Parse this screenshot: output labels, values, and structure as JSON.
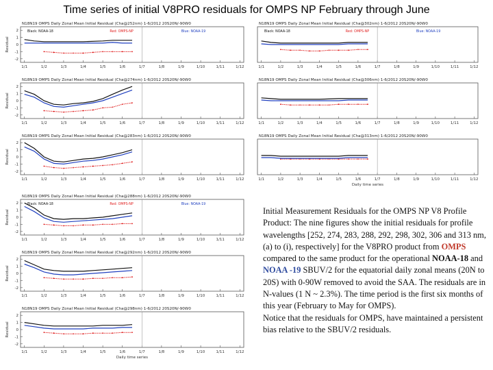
{
  "title": "Time series of initial V8PRO residuals for OMPS NP February through June",
  "colors": {
    "noaa18": "#111111",
    "omps": "#e02020",
    "noaa19": "#1f3fbf",
    "frame": "#555555"
  },
  "caption": {
    "p1_a": "Initial Measurement Residuals for the OMPS NP V8 Profile Product: The nine figures show the initial residuals for profile wavelengths [252, 274, 283, 288, 292, 298, 302, 306 and 313 nm, (a) to (i), respectively] for the V8PRO product from ",
    "omps": "OMPS",
    "p1_b": " compared to the same product for the operational ",
    "noaa18": "NOAA-18",
    "p1_c": " and ",
    "noaa19": "NOAA -19",
    "p1_d": " SBUV/2 for the equatorial daily zonal means (20N to 20S) with 0-90W removed to avoid the SAA. The residuals are in N-values (1 N ~ 2.3%). The time period is the first six months of this year (February to May for OMPS).",
    "p2": "Notice that the residuals for OMPS, have maintained a persistent bias relative to the SBUV/2 residuals."
  },
  "chart_data": [
    {
      "type": "line",
      "title": "N18N19 OMPS Daily Zonal Mean Initial Residual (Cha@252nm) 1-6/2012 20S20N/-90W0",
      "ylabel": "Residual",
      "xlabel": "",
      "x_ticks": [
        "1/1",
        "1/2",
        "1/3",
        "1/4",
        "1/5",
        "1/6",
        "1/7",
        "1/8",
        "1/9",
        "1/10",
        "1/11",
        "1/12"
      ],
      "y_ticks": [
        "2",
        "1",
        "0",
        "-1",
        "-2"
      ],
      "ylim": [
        -2.5,
        2.5
      ],
      "legend": [
        "Black: NOAA-18",
        "Red: OMPS-NP",
        "Blue: NOAA-19"
      ],
      "series": [
        {
          "name": "NOAA-18",
          "x": [
            1,
            1.5,
            2,
            3,
            4,
            5,
            5.5,
            6,
            6.5
          ],
          "values": [
            0.7,
            0.5,
            0.4,
            0.4,
            0.4,
            0.5,
            0.6,
            0.6,
            0.6
          ]
        },
        {
          "name": "OMPS-NP",
          "x": [
            2,
            2.5,
            3,
            3.5,
            4,
            4.5,
            5,
            5.5,
            6,
            6.5
          ],
          "values": [
            -1.0,
            -1.1,
            -1.2,
            -1.2,
            -1.2,
            -1.1,
            -1.0,
            -1.0,
            -1.0,
            -1.0
          ]
        },
        {
          "name": "NOAA-19",
          "x": [
            1,
            1.5,
            2,
            3,
            4,
            5,
            5.5,
            6,
            6.5
          ],
          "values": [
            0.2,
            0.2,
            0.2,
            0.2,
            0.2,
            0.2,
            0.3,
            0.2,
            0.2
          ]
        }
      ]
    },
    {
      "type": "line",
      "title": "N18N19 OMPS Daily Zonal Mean Initial Residual (Cha@274nm) 1-6/2012 20S20N/-90W0",
      "ylabel": "Residual",
      "xlabel": "",
      "x_ticks": [
        "1/1",
        "1/2",
        "1/3",
        "1/4",
        "1/5",
        "1/6",
        "1/7",
        "1/8",
        "1/9",
        "1/10",
        "1/11",
        "1/12"
      ],
      "y_ticks": [
        "2",
        "1",
        "0",
        "-1",
        "-2"
      ],
      "ylim": [
        -2.5,
        2.5
      ],
      "series": [
        {
          "name": "NOAA-18",
          "x": [
            1,
            1.5,
            2,
            2.5,
            3,
            3.5,
            4,
            4.5,
            5,
            5.5,
            6,
            6.5
          ],
          "values": [
            1.4,
            0.9,
            0.0,
            -0.5,
            -0.6,
            -0.4,
            -0.3,
            -0.1,
            0.3,
            0.9,
            1.5,
            2.0
          ]
        },
        {
          "name": "OMPS-NP",
          "x": [
            2,
            2.5,
            3,
            3.5,
            4,
            4.5,
            5,
            5.5,
            6,
            6.5
          ],
          "values": [
            -1.4,
            -1.5,
            -1.6,
            -1.5,
            -1.4,
            -1.3,
            -1.0,
            -0.9,
            -0.5,
            -0.3
          ]
        },
        {
          "name": "NOAA-19",
          "x": [
            1,
            1.5,
            2,
            2.5,
            3,
            3.5,
            4,
            4.5,
            5,
            5.5,
            6,
            6.5
          ],
          "values": [
            0.9,
            0.5,
            -0.3,
            -0.8,
            -0.9,
            -0.7,
            -0.5,
            -0.3,
            0.0,
            0.5,
            1.0,
            1.5
          ]
        }
      ]
    },
    {
      "type": "line",
      "title": "N18N19 OMPS Daily Zonal Mean Initial Residual (Cha@283nm) 1-6/2012 20S20N/-90W0",
      "ylabel": "Residual",
      "xlabel": "",
      "x_ticks": [
        "1/1",
        "1/2",
        "1/3",
        "1/4",
        "1/5",
        "1/6",
        "1/7",
        "1/8",
        "1/9",
        "1/10",
        "1/11",
        "1/12"
      ],
      "y_ticks": [
        "2",
        "1",
        "0",
        "-1",
        "-2"
      ],
      "ylim": [
        -2.5,
        2.5
      ],
      "series": [
        {
          "name": "NOAA-18",
          "x": [
            1,
            1.5,
            2,
            2.5,
            3,
            3.5,
            4,
            4.5,
            5,
            5.5,
            6,
            6.5
          ],
          "values": [
            2.0,
            1.2,
            0.0,
            -0.6,
            -0.7,
            -0.5,
            -0.3,
            -0.2,
            0.0,
            0.3,
            0.6,
            1.0
          ]
        },
        {
          "name": "OMPS-NP",
          "x": [
            2,
            2.5,
            3,
            3.5,
            4,
            4.5,
            5,
            5.5,
            6,
            6.5
          ],
          "values": [
            -1.3,
            -1.5,
            -1.6,
            -1.5,
            -1.4,
            -1.3,
            -1.2,
            -1.1,
            -0.9,
            -0.7
          ]
        },
        {
          "name": "NOAA-19",
          "x": [
            1,
            1.5,
            2,
            2.5,
            3,
            3.5,
            4,
            4.5,
            5,
            5.5,
            6,
            6.5
          ],
          "values": [
            1.4,
            0.8,
            -0.3,
            -0.9,
            -1.0,
            -0.8,
            -0.6,
            -0.5,
            -0.3,
            0.0,
            0.3,
            0.7
          ]
        }
      ]
    },
    {
      "type": "line",
      "title": "N18N19 OMPS Daily Zonal Mean Initial Residual (Cha@288nm) 1-6/2012 20S20N/-90W0",
      "ylabel": "Residual",
      "xlabel": "",
      "x_ticks": [
        "1/1",
        "1/2",
        "1/3",
        "1/4",
        "1/5",
        "1/6",
        "1/7",
        "1/8",
        "1/9",
        "1/10",
        "1/11",
        "1/12"
      ],
      "y_ticks": [
        "2",
        "1",
        "0",
        "-1",
        "-2"
      ],
      "ylim": [
        -2.5,
        2.5
      ],
      "legend": [
        "Black: NOAA-18",
        "Red: OMPS-NP",
        "Blue: NOAA-19"
      ],
      "series": [
        {
          "name": "NOAA-18",
          "x": [
            1,
            1.5,
            2,
            2.5,
            3,
            3.5,
            4,
            4.5,
            5,
            5.5,
            6,
            6.5
          ],
          "values": [
            2.0,
            1.3,
            0.3,
            -0.2,
            -0.3,
            -0.2,
            -0.2,
            -0.1,
            0.0,
            0.2,
            0.4,
            0.6
          ]
        },
        {
          "name": "OMPS-NP",
          "x": [
            2,
            2.5,
            3,
            3.5,
            4,
            4.5,
            5,
            5.5,
            6,
            6.5
          ],
          "values": [
            -1.0,
            -1.1,
            -1.2,
            -1.2,
            -1.1,
            -1.1,
            -1.0,
            -1.0,
            -0.9,
            -0.9
          ]
        },
        {
          "name": "NOAA-19",
          "x": [
            1,
            1.5,
            2,
            2.5,
            3,
            3.5,
            4,
            4.5,
            5,
            5.5,
            6,
            6.5
          ],
          "values": [
            1.5,
            0.8,
            -0.1,
            -0.6,
            -0.7,
            -0.6,
            -0.5,
            -0.4,
            -0.3,
            -0.2,
            0.0,
            0.2
          ]
        }
      ]
    },
    {
      "type": "line",
      "title": "N18N19 OMPS Daily Zonal Mean Initial Residual (Cha@292nm) 1-6/2012 20S20N/-90W0",
      "ylabel": "Residual",
      "xlabel": "",
      "x_ticks": [
        "1/1",
        "1/2",
        "1/3",
        "1/4",
        "1/5",
        "1/6",
        "1/7",
        "1/8",
        "1/9",
        "1/10",
        "1/11",
        "1/12"
      ],
      "y_ticks": [
        "2",
        "1",
        "0",
        "-1",
        "-2"
      ],
      "ylim": [
        -2.5,
        2.5
      ],
      "series": [
        {
          "name": "NOAA-18",
          "x": [
            1,
            1.5,
            2,
            2.5,
            3,
            3.5,
            4,
            4.5,
            5,
            5.5,
            6,
            6.5
          ],
          "values": [
            1.8,
            1.2,
            0.6,
            0.4,
            0.3,
            0.3,
            0.3,
            0.4,
            0.5,
            0.6,
            0.7,
            0.8
          ]
        },
        {
          "name": "OMPS-NP",
          "x": [
            2,
            2.5,
            3,
            3.5,
            4,
            4.5,
            5,
            5.5,
            6,
            6.5
          ],
          "values": [
            -0.6,
            -0.7,
            -0.8,
            -0.8,
            -0.8,
            -0.7,
            -0.7,
            -0.6,
            -0.6,
            -0.5
          ]
        },
        {
          "name": "NOAA-19",
          "x": [
            1,
            1.5,
            2,
            2.5,
            3,
            3.5,
            4,
            4.5,
            5,
            5.5,
            6,
            6.5
          ],
          "values": [
            1.3,
            0.8,
            0.2,
            -0.1,
            -0.2,
            -0.2,
            -0.1,
            0.0,
            0.1,
            0.2,
            0.3,
            0.4
          ]
        }
      ]
    },
    {
      "type": "line",
      "title": "N18N19 OMPS Daily Zonal Mean Initial Residual (Cha@298nm) 1-6/2012 20S20N/-90W0",
      "ylabel": "Residual",
      "xlabel": "Daily time series",
      "x_ticks": [
        "1/1",
        "1/2",
        "1/3",
        "1/4",
        "1/5",
        "1/6",
        "1/7",
        "1/8",
        "1/9",
        "1/10",
        "1/11",
        "1/12"
      ],
      "y_ticks": [
        "2",
        "1",
        "0",
        "-1",
        "-2"
      ],
      "ylim": [
        -2.5,
        2.5
      ],
      "series": [
        {
          "name": "NOAA-18",
          "x": [
            1,
            1.5,
            2,
            2.5,
            3,
            3.5,
            4,
            4.5,
            5,
            5.5,
            6,
            6.5
          ],
          "values": [
            1.0,
            0.8,
            0.6,
            0.5,
            0.5,
            0.5,
            0.5,
            0.5,
            0.6,
            0.6,
            0.6,
            0.7
          ]
        },
        {
          "name": "OMPS-NP",
          "x": [
            2,
            2.5,
            3,
            3.5,
            4,
            4.5,
            5,
            5.5,
            6,
            6.5
          ],
          "values": [
            -0.4,
            -0.5,
            -0.6,
            -0.6,
            -0.6,
            -0.5,
            -0.5,
            -0.5,
            -0.4,
            -0.4
          ]
        },
        {
          "name": "NOAA-19",
          "x": [
            1,
            1.5,
            2,
            2.5,
            3,
            3.5,
            4,
            4.5,
            5,
            5.5,
            6,
            6.5
          ],
          "values": [
            0.6,
            0.4,
            0.2,
            0.1,
            0.1,
            0.1,
            0.1,
            0.2,
            0.2,
            0.2,
            0.3,
            0.3
          ]
        }
      ]
    },
    {
      "type": "line",
      "title": "N18N19 OMPS Daily Zonal Mean Initial Residual (Cha@302nm) 1-6/2012 20S20N/-90W0",
      "ylabel": "",
      "xlabel": "",
      "x_ticks": [
        "1/1",
        "1/2",
        "1/3",
        "1/4",
        "1/5",
        "1/6",
        "1/7",
        "1/8",
        "1/9",
        "1/10",
        "1/11",
        "1/12"
      ],
      "y_ticks": [],
      "ylim": [
        -2.5,
        2.5
      ],
      "legend": [
        "Black: NOAA-18",
        "Red: OMPS-NP",
        "Blue: NOAA-19"
      ],
      "series": [
        {
          "name": "NOAA-18",
          "x": [
            1,
            1.5,
            2,
            3,
            4,
            5,
            5.5,
            6,
            6.5
          ],
          "values": [
            0.5,
            0.3,
            0.2,
            0.2,
            0.2,
            0.2,
            0.3,
            0.3,
            0.3
          ]
        },
        {
          "name": "OMPS-NP",
          "x": [
            2,
            2.5,
            3,
            3.5,
            4,
            4.5,
            5,
            5.5,
            6,
            6.5
          ],
          "values": [
            -0.7,
            -0.8,
            -0.8,
            -0.9,
            -0.9,
            -0.8,
            -0.8,
            -0.8,
            -0.7,
            -0.7
          ]
        },
        {
          "name": "NOAA-19",
          "x": [
            1,
            1.5,
            2,
            3,
            4,
            5,
            5.5,
            6,
            6.5
          ],
          "values": [
            0.1,
            0.0,
            0.0,
            0.0,
            0.0,
            0.0,
            0.1,
            0.1,
            0.1
          ]
        }
      ]
    },
    {
      "type": "line",
      "title": "N18N19 OMPS Daily Zonal Mean Initial Residual (Cha@306nm) 1-6/2012 20S20N/-90W0",
      "ylabel": "",
      "xlabel": "",
      "x_ticks": [
        "1/1",
        "1/2",
        "1/3",
        "1/4",
        "1/5",
        "1/6",
        "1/7",
        "1/8",
        "1/9",
        "1/10",
        "1/11",
        "1/12"
      ],
      "y_ticks": [],
      "ylim": [
        -2.5,
        2.5
      ],
      "series": [
        {
          "name": "NOAA-18",
          "x": [
            1,
            1.5,
            2,
            3,
            4,
            5,
            5.5,
            6,
            6.5
          ],
          "values": [
            0.4,
            0.3,
            0.2,
            0.2,
            0.2,
            0.3,
            0.3,
            0.3,
            0.3
          ]
        },
        {
          "name": "OMPS-NP",
          "x": [
            2,
            2.5,
            3,
            3.5,
            4,
            4.5,
            5,
            5.5,
            6,
            6.5
          ],
          "values": [
            -0.5,
            -0.6,
            -0.6,
            -0.6,
            -0.6,
            -0.6,
            -0.5,
            -0.5,
            -0.5,
            -0.5
          ]
        },
        {
          "name": "NOAA-19",
          "x": [
            1,
            1.5,
            2,
            3,
            4,
            5,
            5.5,
            6,
            6.5
          ],
          "values": [
            0.1,
            0.0,
            0.0,
            0.0,
            0.0,
            0.0,
            0.1,
            0.1,
            0.1
          ]
        }
      ]
    },
    {
      "type": "line",
      "title": "N18N19 OMPS Daily Zonal Mean Initial Residual (Cha@313nm) 1-6/2012 20S20N/-90W0",
      "ylabel": "",
      "xlabel": "Daily time series",
      "x_ticks": [
        "1/1",
        "1/2",
        "1/3",
        "1/4",
        "1/5",
        "1/6",
        "1/7",
        "1/8",
        "1/9",
        "1/10",
        "1/11",
        "1/12"
      ],
      "y_ticks": [],
      "ylim": [
        -2.5,
        2.5
      ],
      "series": [
        {
          "name": "NOAA-18",
          "x": [
            1,
            1.5,
            2,
            3,
            4,
            5,
            5.5,
            6,
            6.5
          ],
          "values": [
            0.2,
            0.2,
            0.1,
            0.1,
            0.1,
            0.1,
            0.2,
            0.2,
            0.2
          ]
        },
        {
          "name": "OMPS-NP",
          "x": [
            2,
            2.5,
            3,
            3.5,
            4,
            4.5,
            5,
            5.5,
            6,
            6.5
          ],
          "values": [
            -0.3,
            -0.3,
            -0.3,
            -0.3,
            -0.3,
            -0.3,
            -0.3,
            -0.3,
            -0.3,
            -0.3
          ]
        },
        {
          "name": "NOAA-19",
          "x": [
            1,
            1.5,
            2,
            3,
            4,
            5,
            5.5,
            6,
            6.5
          ],
          "values": [
            -0.1,
            -0.1,
            -0.2,
            -0.2,
            -0.2,
            -0.2,
            -0.1,
            -0.1,
            -0.1
          ]
        }
      ]
    }
  ]
}
